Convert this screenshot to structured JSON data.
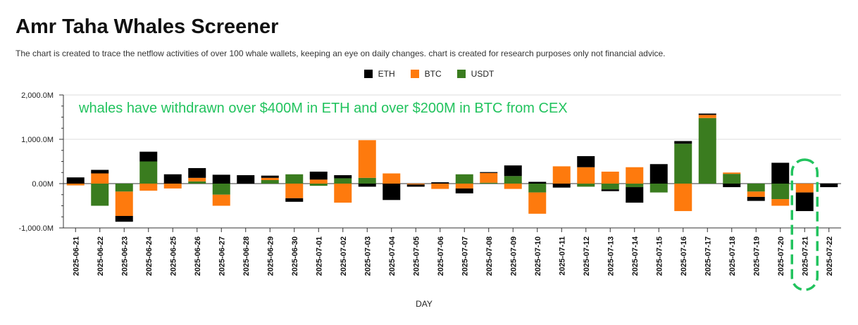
{
  "page": {
    "title": "Amr Taha Whales Screener",
    "subtitle": "The chart is created to trace the netflow activities of over 100 whale wallets, keeping an eye on daily changes.  chart is created for research purposes only not financial advice."
  },
  "colors": {
    "ETH": "#000000",
    "BTC": "#fe7a0d",
    "USDT": "#3a7c1f",
    "annotation": "#22c35e",
    "grid": "#dddddd"
  },
  "chart_data": {
    "type": "bar",
    "stacked": true,
    "xlabel": "DAY",
    "ylabel": "",
    "ylim": [
      -1000,
      2000
    ],
    "yticks": [
      -1000,
      0,
      1000,
      2000
    ],
    "ytick_labels": [
      "-1,000.0M",
      "0.00M",
      "1,000.0M",
      "2,000.0M"
    ],
    "legend_position": "top-center",
    "grid": "horizontal",
    "categories": [
      "2025-06-21",
      "2025-06-22",
      "2025-06-23",
      "2025-06-24",
      "2025-06-25",
      "2025-06-26",
      "2025-06-27",
      "2025-06-28",
      "2025-06-29",
      "2025-06-30",
      "2025-07-01",
      "2025-07-02",
      "2025-07-03",
      "2025-07-04",
      "2025-07-05",
      "2025-07-06",
      "2025-07-07",
      "2025-07-08",
      "2025-07-09",
      "2025-07-10",
      "2025-07-11",
      "2025-07-12",
      "2025-07-13",
      "2025-07-14",
      "2025-07-15",
      "2025-07-16",
      "2025-07-17",
      "2025-07-18",
      "2025-07-19",
      "2025-07-20",
      "2025-07-21",
      "2025-07-22"
    ],
    "series": [
      {
        "name": "USDT",
        "values": [
          0,
          -500,
          -180,
          500,
          0,
          50,
          -250,
          0,
          80,
          210,
          -50,
          120,
          130,
          0,
          0,
          0,
          210,
          20,
          170,
          -200,
          0,
          -70,
          -130,
          -80,
          -200,
          900,
          1480,
          220,
          -180,
          -350,
          0,
          0
        ]
      },
      {
        "name": "BTC",
        "values": [
          -40,
          230,
          -550,
          -160,
          -110,
          80,
          -250,
          0,
          50,
          -330,
          90,
          -430,
          850,
          230,
          -20,
          -120,
          -110,
          220,
          -120,
          -480,
          390,
          370,
          270,
          370,
          0,
          -620,
          70,
          30,
          -120,
          -150,
          -200,
          0
        ]
      },
      {
        "name": "ETH",
        "values": [
          140,
          80,
          -130,
          220,
          210,
          220,
          200,
          190,
          50,
          -80,
          180,
          70,
          -70,
          -370,
          -50,
          30,
          -110,
          20,
          240,
          40,
          -90,
          250,
          -40,
          -350,
          440,
          60,
          30,
          -80,
          -90,
          470,
          -420,
          -80
        ]
      }
    ],
    "annotations": [
      {
        "text": "whales have withdrawn over $400M in ETH and over $200M in BTC from CEX",
        "highlight": "2025-07-21"
      }
    ]
  }
}
